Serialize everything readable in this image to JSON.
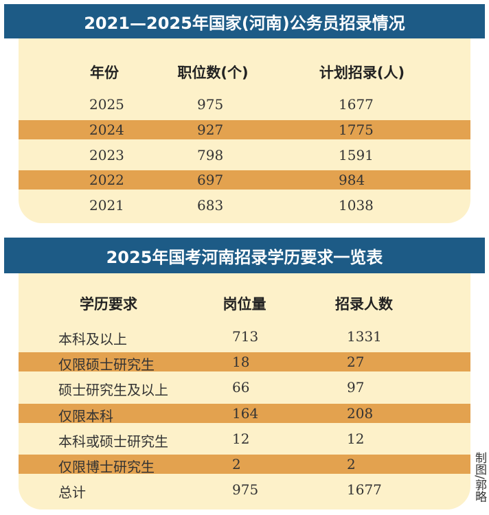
{
  "tables": [
    {
      "title": "2021—2025年国家(河南)公务员招录情况",
      "headers": [
        "年份",
        "职位数(个)",
        "计划招录(人)"
      ],
      "rows": [
        [
          2025,
          975,
          1677
        ],
        [
          2024,
          927,
          1775
        ],
        [
          2023,
          798,
          1591
        ],
        [
          2022,
          697,
          984
        ],
        [
          2021,
          683,
          1038
        ]
      ]
    },
    {
      "title": "2025年国考河南招录学历要求一览表",
      "headers": [
        "学历要求",
        "岗位量",
        "招录人数"
      ],
      "rows": [
        [
          "本科及以上",
          713,
          1331
        ],
        [
          "仅限硕士研究生",
          18,
          27
        ],
        [
          "硕士研究生及以上",
          66,
          97
        ],
        [
          "仅限本科",
          164,
          208
        ],
        [
          "本科或硕士研究生",
          12,
          12
        ],
        [
          "仅限博士研究生",
          2,
          2
        ],
        [
          "总计",
          975,
          1677
        ]
      ]
    }
  ],
  "credit": "制图/郭略"
}
